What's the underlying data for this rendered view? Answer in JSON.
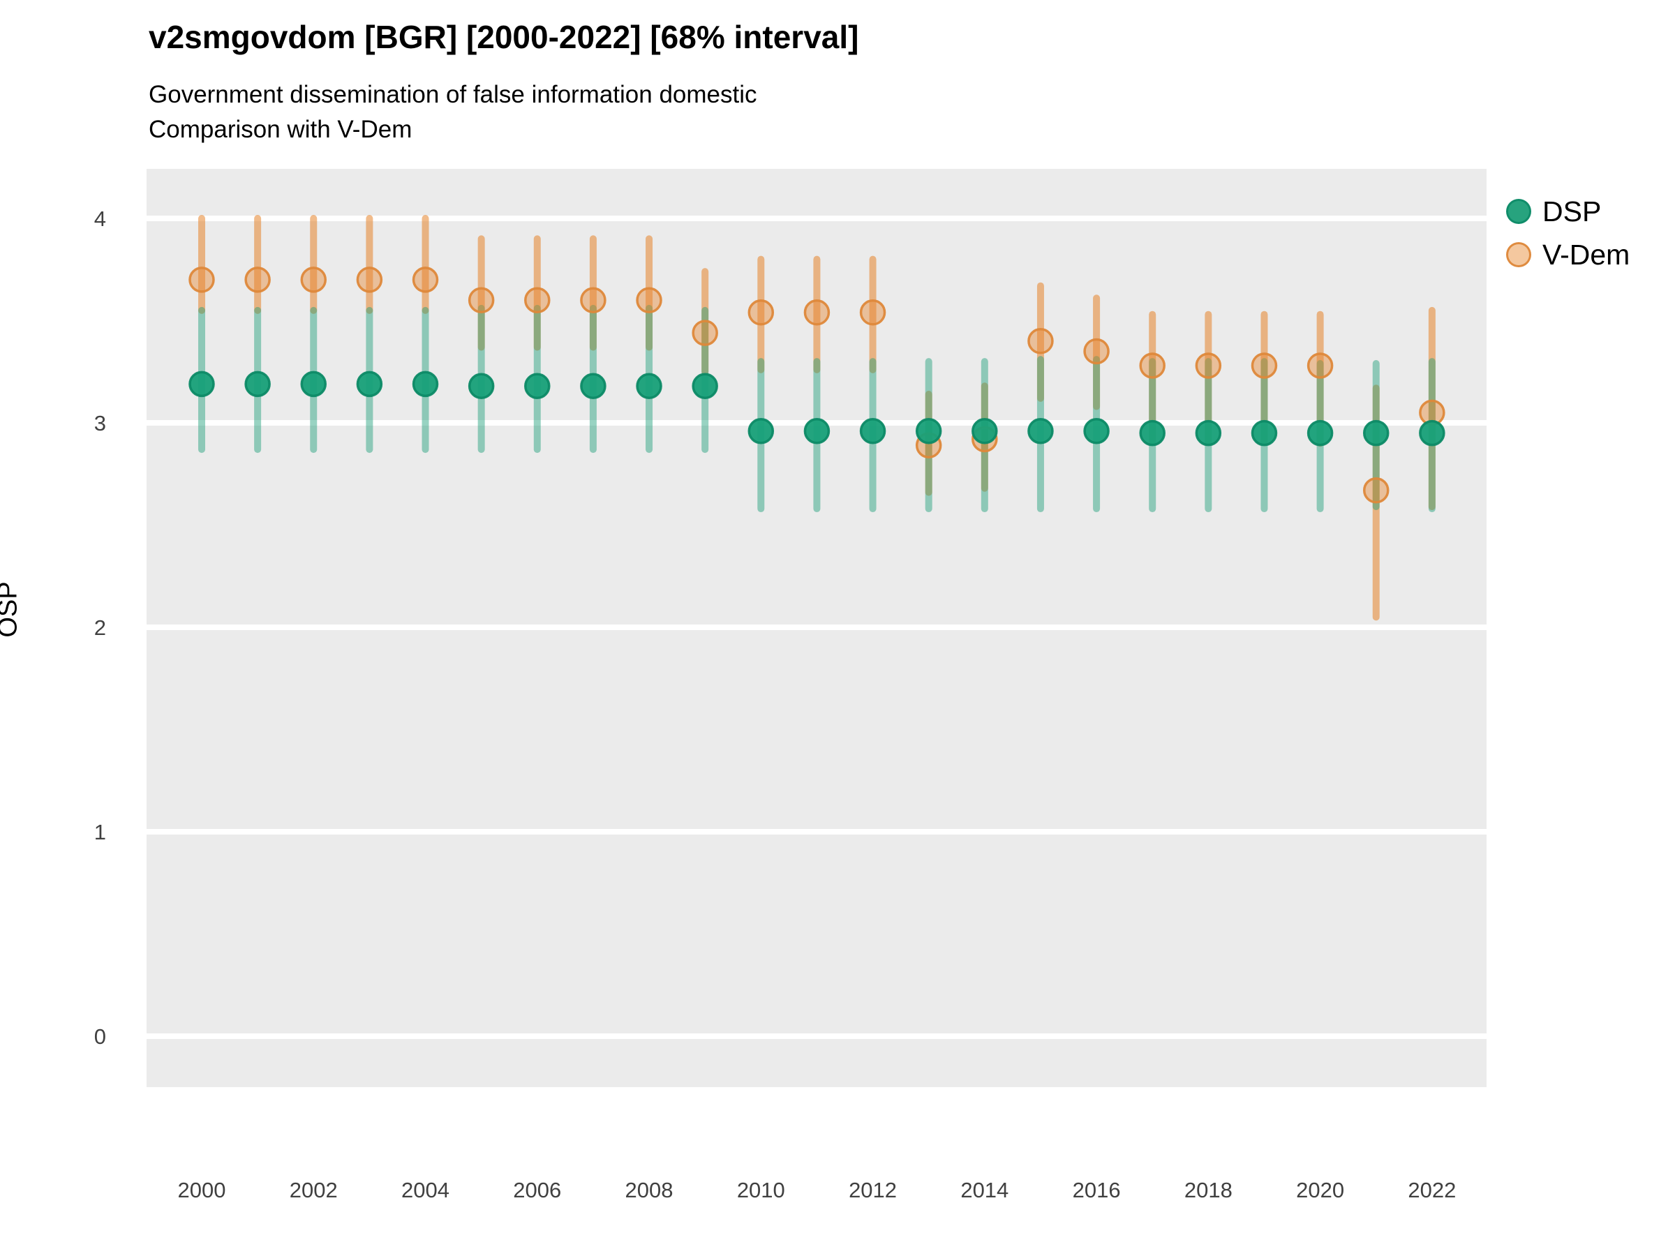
{
  "header": {
    "title": "v2smgovdom [BGR] [2000-2022] [68% interval]",
    "subtitle_line1": "Government dissemination of false information domestic",
    "subtitle_line2": "Comparison with V-Dem"
  },
  "chart_data": {
    "type": "scatter",
    "title": "v2smgovdom [BGR] [2000-2022] [68% interval]",
    "subtitle": [
      "Government dissemination of false information domestic",
      "Comparison with V-Dem"
    ],
    "xlabel": "",
    "ylabel": "OSP",
    "interval_label": "68% interval",
    "country": "BGR",
    "variable": "v2smgovdom",
    "ylim": [
      -0.3,
      4.25
    ],
    "yticks": [
      0,
      1,
      2,
      3,
      4
    ],
    "xticks": [
      2000,
      2002,
      2004,
      2006,
      2008,
      2010,
      2012,
      2014,
      2016,
      2018,
      2020,
      2022
    ],
    "grid": "horizontal-major-only",
    "panel_background": "#EBEBEB",
    "gridline_color": "#FFFFFF",
    "legend_position": "right",
    "x": [
      2000,
      2001,
      2002,
      2003,
      2004,
      2005,
      2006,
      2007,
      2008,
      2009,
      2010,
      2011,
      2012,
      2013,
      2014,
      2015,
      2016,
      2017,
      2018,
      2019,
      2020,
      2021,
      2022
    ],
    "series": [
      {
        "name": "DSP",
        "color": "#1B9E77",
        "marker": "circle",
        "values": [
          3.19,
          3.19,
          3.19,
          3.19,
          3.19,
          3.18,
          3.18,
          3.18,
          3.18,
          3.18,
          2.96,
          2.96,
          2.96,
          2.96,
          2.96,
          2.96,
          2.96,
          2.95,
          2.95,
          2.95,
          2.95,
          2.95,
          2.95
        ],
        "lower": [
          2.87,
          2.87,
          2.87,
          2.87,
          2.87,
          2.87,
          2.87,
          2.87,
          2.87,
          2.87,
          2.58,
          2.58,
          2.58,
          2.58,
          2.58,
          2.58,
          2.58,
          2.58,
          2.58,
          2.58,
          2.58,
          2.59,
          2.58
        ],
        "upper": [
          3.55,
          3.55,
          3.55,
          3.55,
          3.55,
          3.56,
          3.56,
          3.56,
          3.56,
          3.55,
          3.3,
          3.3,
          3.3,
          3.3,
          3.3,
          3.31,
          3.31,
          3.3,
          3.3,
          3.3,
          3.29,
          3.29,
          3.3
        ]
      },
      {
        "name": "V-Dem",
        "color": "#E6842A",
        "marker": "circle-open",
        "values": [
          3.7,
          3.7,
          3.7,
          3.7,
          3.7,
          3.6,
          3.6,
          3.6,
          3.6,
          3.44,
          3.54,
          3.54,
          3.54,
          2.89,
          2.92,
          3.4,
          3.35,
          3.28,
          3.28,
          3.28,
          3.28,
          2.67,
          3.05
        ],
        "lower": [
          3.55,
          3.55,
          3.55,
          3.55,
          3.55,
          3.37,
          3.37,
          3.37,
          3.37,
          3.25,
          3.26,
          3.26,
          3.26,
          2.66,
          2.68,
          3.12,
          3.08,
          2.91,
          2.91,
          2.91,
          2.9,
          2.05,
          2.59
        ],
        "upper": [
          4.0,
          4.0,
          4.0,
          4.0,
          4.0,
          3.9,
          3.9,
          3.9,
          3.9,
          3.74,
          3.8,
          3.8,
          3.8,
          3.14,
          3.18,
          3.67,
          3.61,
          3.53,
          3.53,
          3.53,
          3.53,
          3.17,
          3.55
        ]
      }
    ]
  },
  "legend": {
    "entries": [
      {
        "label": "DSP"
      },
      {
        "label": "V-Dem"
      }
    ]
  },
  "axis": {
    "y_label": "OSP"
  }
}
